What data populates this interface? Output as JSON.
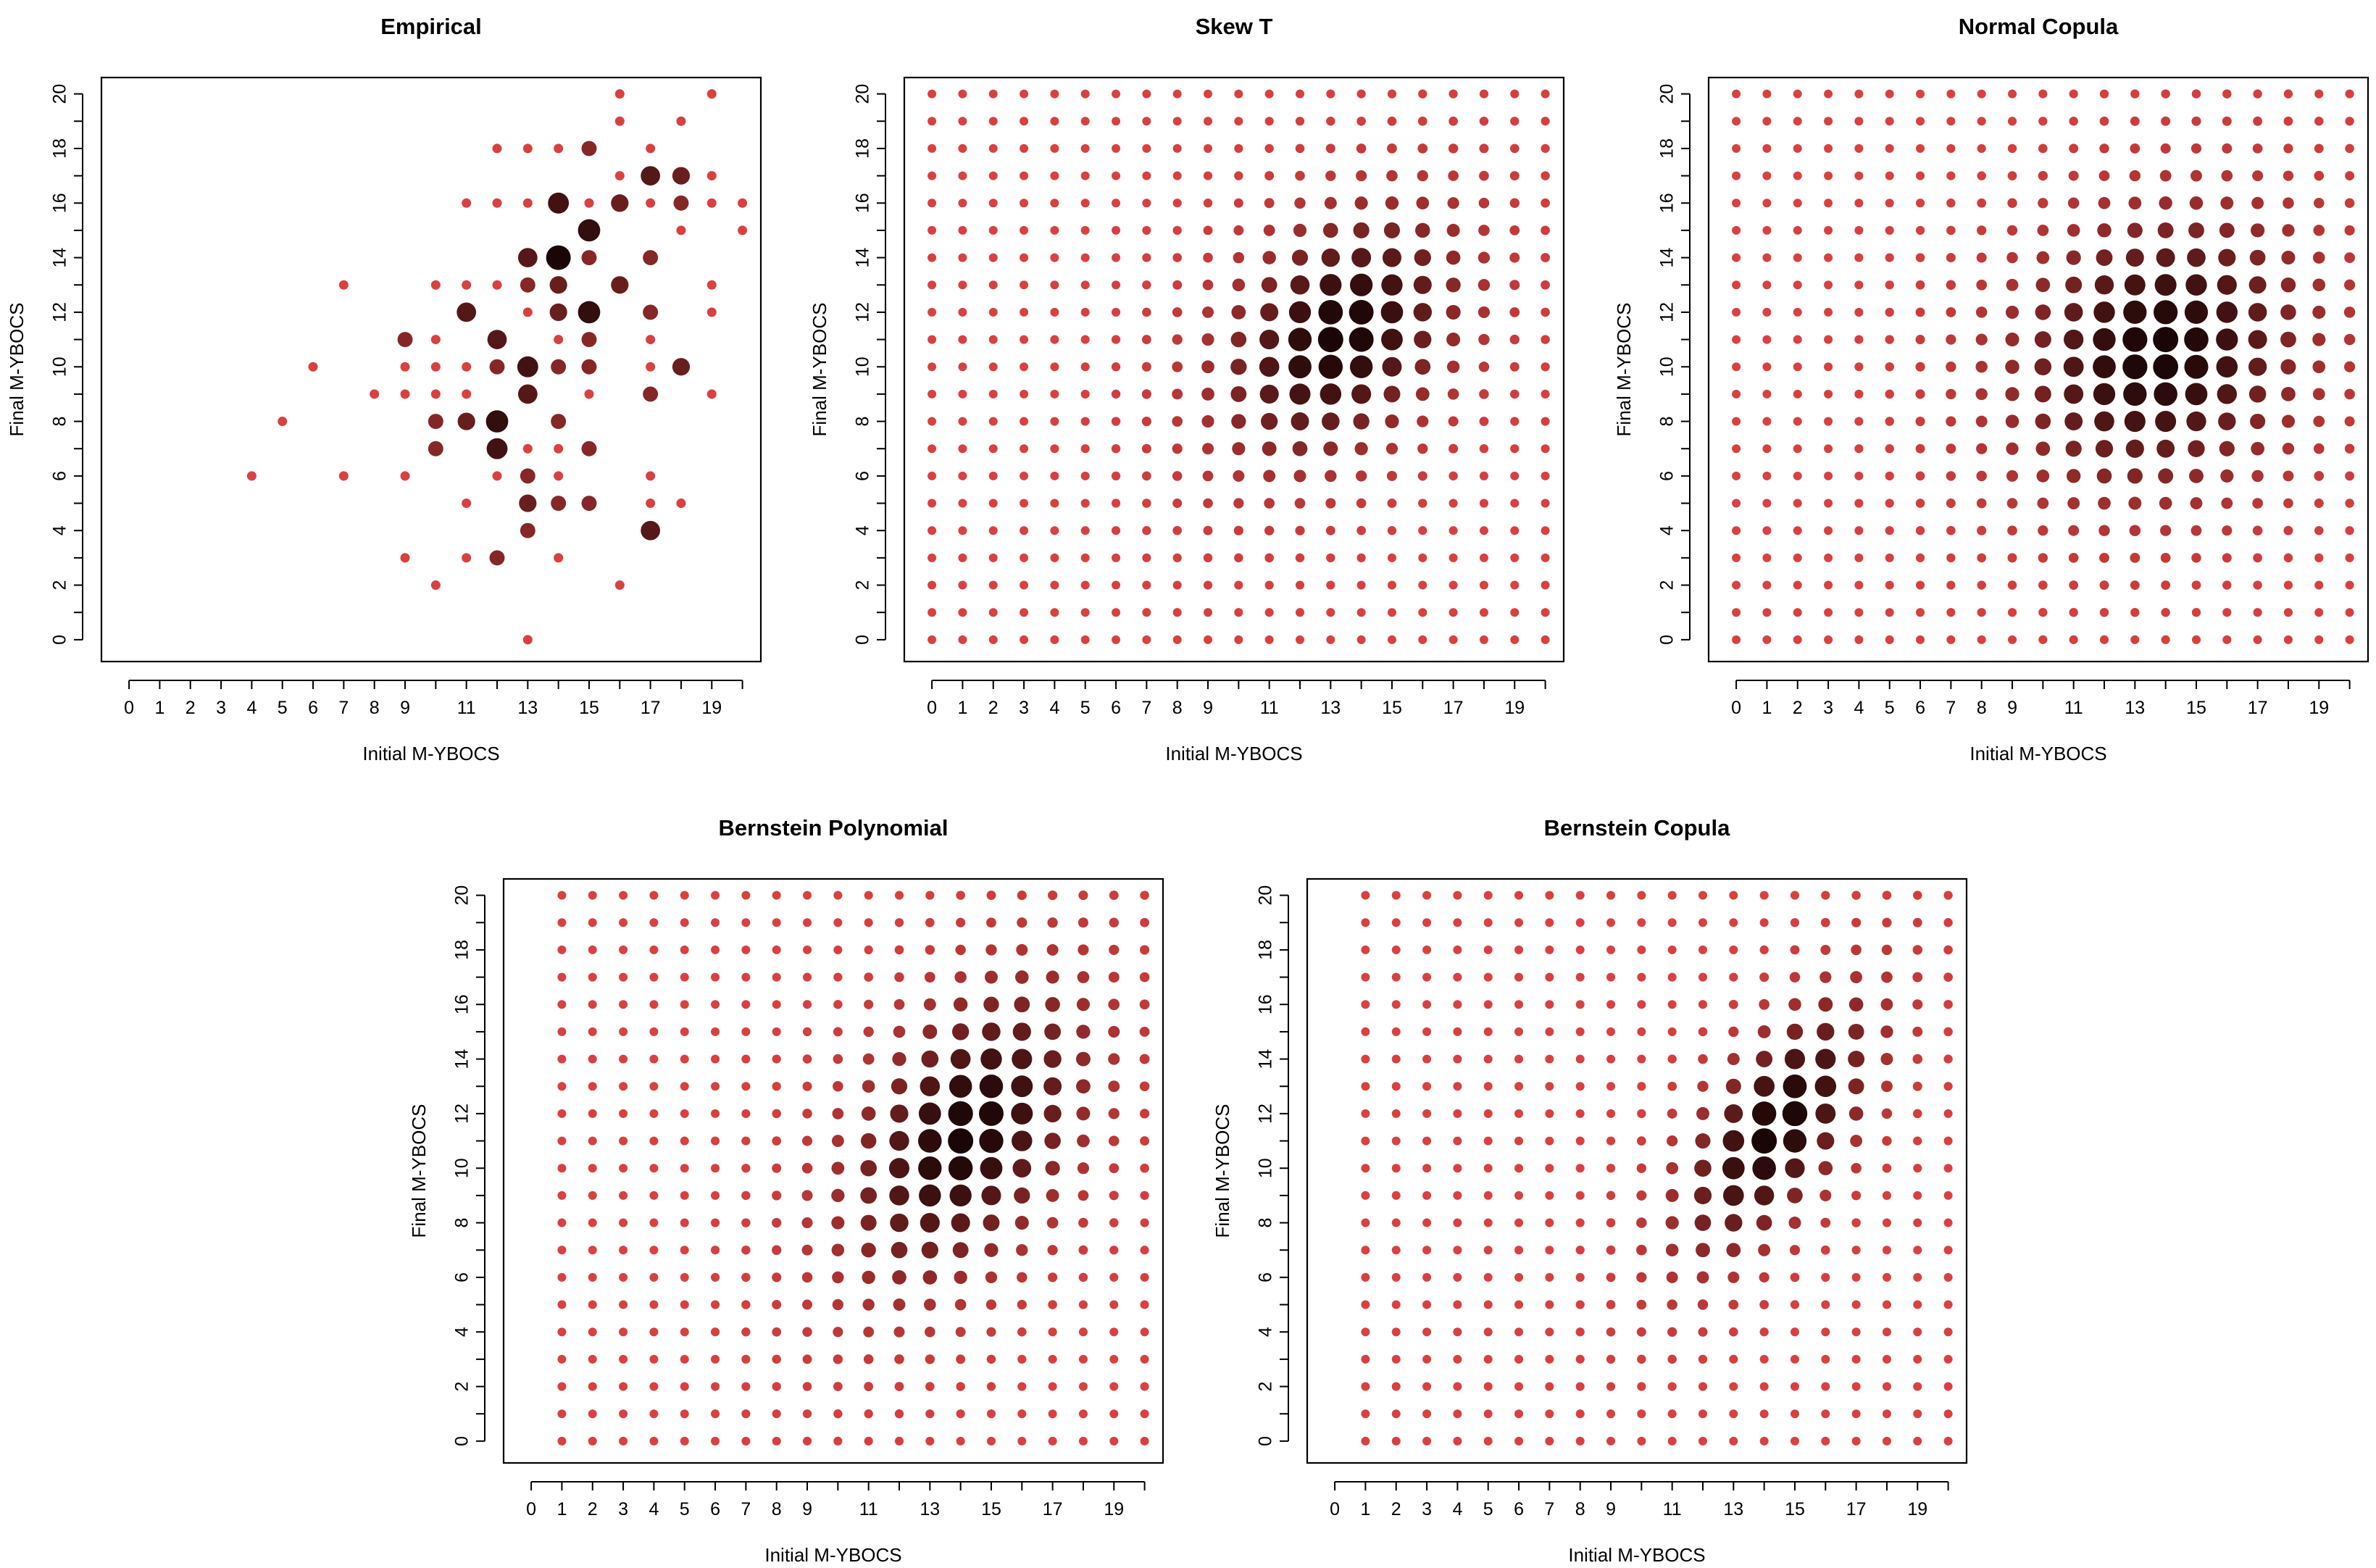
{
  "style": {
    "dot_light": "#d94040",
    "dot_dark": "#1a0606",
    "frame": "#000000"
  },
  "chart_data": [
    {
      "type": "bubble",
      "title": "Empirical",
      "xlabel": "Initial M-YBOCS",
      "ylabel": "Final M-YBOCS",
      "x_ticks": [
        0,
        1,
        2,
        3,
        4,
        5,
        6,
        7,
        8,
        9,
        11,
        13,
        15,
        17,
        19
      ],
      "y_ticks": [
        0,
        2,
        4,
        6,
        8,
        10,
        12,
        14,
        16,
        18,
        20
      ],
      "xlim": [
        -0.9,
        20.6
      ],
      "ylim": [
        -0.8,
        20.6
      ],
      "grid": false,
      "legend": "none",
      "points": [
        [
          4,
          6,
          1
        ],
        [
          5,
          8,
          1
        ],
        [
          6,
          10,
          1
        ],
        [
          7,
          6,
          1
        ],
        [
          7,
          13,
          1
        ],
        [
          8,
          9,
          1
        ],
        [
          9,
          3,
          1
        ],
        [
          9,
          6,
          1
        ],
        [
          9,
          9,
          1
        ],
        [
          9,
          10,
          1
        ],
        [
          9,
          11,
          2
        ],
        [
          10,
          2,
          1
        ],
        [
          10,
          7,
          2
        ],
        [
          10,
          8,
          2
        ],
        [
          10,
          9,
          1
        ],
        [
          10,
          10,
          1
        ],
        [
          10,
          11,
          1
        ],
        [
          10,
          13,
          1
        ],
        [
          11,
          3,
          1
        ],
        [
          11,
          5,
          1
        ],
        [
          11,
          8,
          3
        ],
        [
          11,
          9,
          1
        ],
        [
          11,
          10,
          1
        ],
        [
          11,
          12,
          4
        ],
        [
          11,
          13,
          1
        ],
        [
          11,
          16,
          1
        ],
        [
          12,
          3,
          2
        ],
        [
          12,
          6,
          1
        ],
        [
          12,
          7,
          5
        ],
        [
          12,
          8,
          6
        ],
        [
          12,
          10,
          2
        ],
        [
          12,
          11,
          4
        ],
        [
          12,
          13,
          1
        ],
        [
          12,
          16,
          1
        ],
        [
          12,
          18,
          1
        ],
        [
          13,
          0,
          1
        ],
        [
          13,
          4,
          2
        ],
        [
          13,
          5,
          3
        ],
        [
          13,
          6,
          2
        ],
        [
          13,
          7,
          1
        ],
        [
          13,
          9,
          4
        ],
        [
          13,
          10,
          5
        ],
        [
          13,
          12,
          1
        ],
        [
          13,
          13,
          2
        ],
        [
          13,
          14,
          4
        ],
        [
          13,
          16,
          1
        ],
        [
          13,
          18,
          1
        ],
        [
          14,
          3,
          1
        ],
        [
          14,
          5,
          2
        ],
        [
          14,
          6,
          1
        ],
        [
          14,
          7,
          1
        ],
        [
          14,
          8,
          2
        ],
        [
          14,
          10,
          2
        ],
        [
          14,
          11,
          1
        ],
        [
          14,
          12,
          3
        ],
        [
          14,
          13,
          3
        ],
        [
          14,
          14,
          8
        ],
        [
          14,
          16,
          5
        ],
        [
          14,
          18,
          1
        ],
        [
          15,
          5,
          2
        ],
        [
          15,
          7,
          2
        ],
        [
          15,
          9,
          1
        ],
        [
          15,
          10,
          2
        ],
        [
          15,
          11,
          2
        ],
        [
          15,
          12,
          6
        ],
        [
          15,
          14,
          2
        ],
        [
          15,
          15,
          6
        ],
        [
          15,
          16,
          1
        ],
        [
          15,
          18,
          2
        ],
        [
          16,
          2,
          1
        ],
        [
          16,
          13,
          3
        ],
        [
          16,
          16,
          3
        ],
        [
          16,
          17,
          1
        ],
        [
          16,
          19,
          1
        ],
        [
          16,
          20,
          1
        ],
        [
          17,
          4,
          4
        ],
        [
          17,
          5,
          1
        ],
        [
          17,
          6,
          1
        ],
        [
          17,
          9,
          2
        ],
        [
          17,
          10,
          1
        ],
        [
          17,
          11,
          1
        ],
        [
          17,
          12,
          2
        ],
        [
          17,
          14,
          2
        ],
        [
          17,
          16,
          1
        ],
        [
          17,
          17,
          4
        ],
        [
          17,
          18,
          1
        ],
        [
          18,
          5,
          1
        ],
        [
          18,
          10,
          3
        ],
        [
          18,
          15,
          1
        ],
        [
          18,
          16,
          2
        ],
        [
          18,
          17,
          3
        ],
        [
          18,
          19,
          1
        ],
        [
          19,
          9,
          1
        ],
        [
          19,
          12,
          1
        ],
        [
          19,
          13,
          1
        ],
        [
          19,
          16,
          1
        ],
        [
          19,
          17,
          1
        ],
        [
          19,
          20,
          1
        ],
        [
          20,
          15,
          1
        ],
        [
          20,
          16,
          1
        ]
      ]
    },
    {
      "type": "bubble",
      "title": "Skew T",
      "xlabel": "Initial M-YBOCS",
      "ylabel": "Final M-YBOCS",
      "x_ticks": [
        0,
        1,
        2,
        3,
        4,
        5,
        6,
        7,
        8,
        9,
        11,
        13,
        15,
        17,
        19
      ],
      "y_ticks": [
        0,
        2,
        4,
        6,
        8,
        10,
        12,
        14,
        16,
        18,
        20
      ],
      "xlim": [
        -0.9,
        20.6
      ],
      "ylim": [
        -0.8,
        20.6
      ],
      "grid": false,
      "legend": "none",
      "x_range": [
        0,
        20
      ],
      "y_range": [
        0,
        20
      ],
      "density": {
        "mu_x": 13.3,
        "mu_y": 11.2,
        "sd_x": 2.6,
        "sd_y": 3.0,
        "rho": 0.35
      }
    },
    {
      "type": "bubble",
      "title": "Normal Copula",
      "xlabel": "Initial M-YBOCS",
      "ylabel": "Final M-YBOCS",
      "x_ticks": [
        0,
        1,
        2,
        3,
        4,
        5,
        6,
        7,
        8,
        9,
        11,
        13,
        15,
        17,
        19
      ],
      "y_ticks": [
        0,
        2,
        4,
        6,
        8,
        10,
        12,
        14,
        16,
        18,
        20
      ],
      "xlim": [
        -0.9,
        20.6
      ],
      "ylim": [
        -0.8,
        20.6
      ],
      "grid": false,
      "legend": "none",
      "x_range": [
        0,
        20
      ],
      "y_range": [
        0,
        20
      ],
      "density": {
        "mu_x": 13.8,
        "mu_y": 10.6,
        "sd_x": 3.2,
        "sd_y": 3.4,
        "rho": 0.15
      }
    },
    {
      "type": "bubble",
      "title": "Bernstein Polynomial",
      "xlabel": "Initial M-YBOCS",
      "ylabel": "Final M-YBOCS",
      "x_ticks": [
        0,
        1,
        2,
        3,
        4,
        5,
        6,
        7,
        8,
        9,
        11,
        13,
        15,
        17,
        19
      ],
      "y_ticks": [
        0,
        2,
        4,
        6,
        8,
        10,
        12,
        14,
        16,
        18,
        20
      ],
      "xlim": [
        -0.9,
        20.6
      ],
      "ylim": [
        -0.8,
        20.6
      ],
      "grid": false,
      "legend": "none",
      "x_range": [
        1,
        20
      ],
      "y_range": [
        0,
        20
      ],
      "density": {
        "mu_x": 14.2,
        "mu_y": 11.3,
        "sd_x": 2.6,
        "sd_y": 3.6,
        "rho": 0.45
      }
    },
    {
      "type": "bubble",
      "title": "Bernstein Copula",
      "xlabel": "Initial M-YBOCS",
      "ylabel": "Final M-YBOCS",
      "x_ticks": [
        0,
        1,
        2,
        3,
        4,
        5,
        6,
        7,
        8,
        9,
        11,
        13,
        15,
        17,
        19
      ],
      "y_ticks": [
        0,
        2,
        4,
        6,
        8,
        10,
        12,
        14,
        16,
        18,
        20
      ],
      "xlim": [
        -0.9,
        20.6
      ],
      "ylim": [
        -0.8,
        20.6
      ],
      "grid": false,
      "legend": "none",
      "x_range": [
        1,
        20
      ],
      "y_range": [
        0,
        20
      ],
      "density": {
        "mu_x": 14.4,
        "mu_y": 11.5,
        "sd_x": 2.1,
        "sd_y": 3.1,
        "rho": 0.65
      }
    }
  ]
}
